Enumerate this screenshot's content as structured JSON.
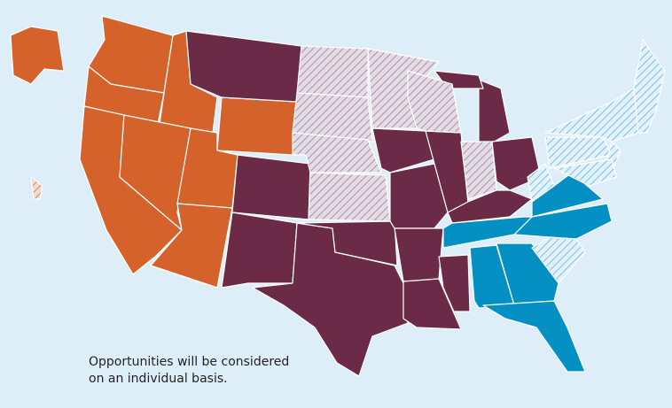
{
  "legend_note": {
    "lines": [
      "Opportunities will be considered",
      "on an individual basis."
    ]
  }
}
